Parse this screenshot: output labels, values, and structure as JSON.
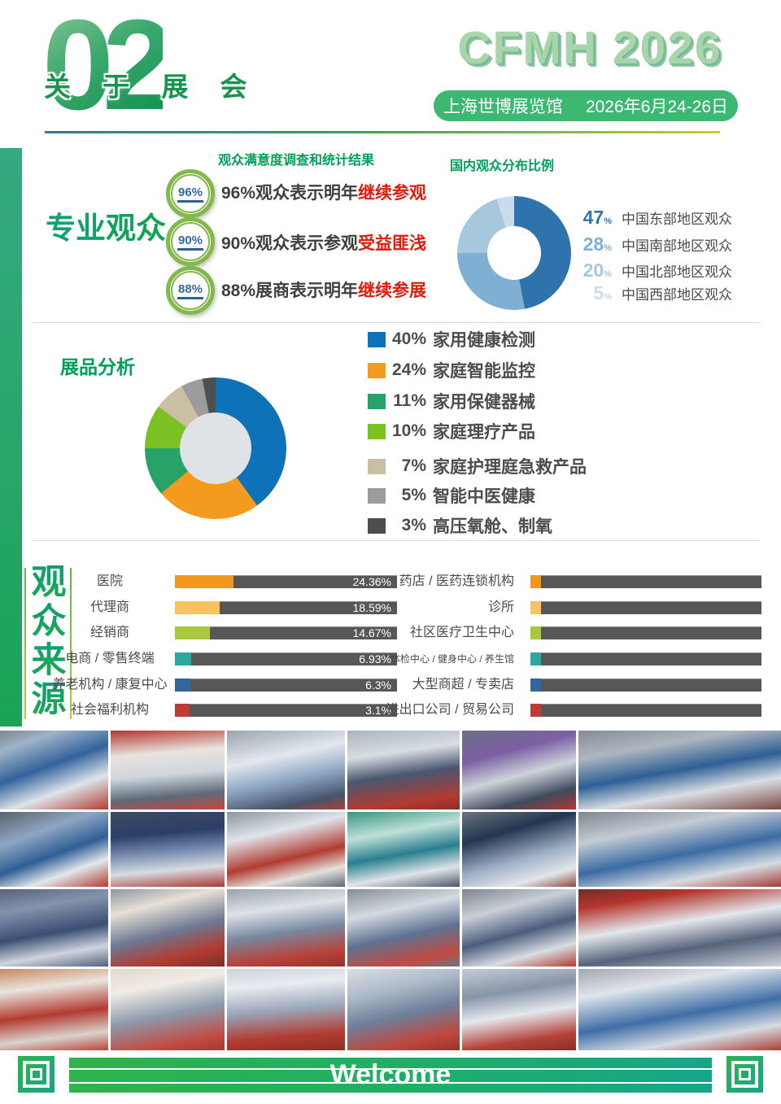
{
  "header": {
    "section_number": "02",
    "section_title": "关 于 展 会",
    "logo": "CFMH 2026",
    "venue": "上海世博展览馆",
    "dates": "2026年6月24-26日"
  },
  "satisfaction": {
    "title": "观众满意度调查和统计结果",
    "side_title": "专业观众",
    "items": [
      {
        "badge": "96%",
        "text": "96%观众表示明年",
        "highlight": "继续参观"
      },
      {
        "badge": "90%",
        "text": "90%观众表示参观",
        "highlight": "受益匪浅"
      },
      {
        "badge": "88%",
        "text": "88%展商表示明年",
        "highlight": "继续参展"
      }
    ]
  },
  "regions": {
    "title": "国内观众分布比例",
    "percent_sign": "%",
    "items": [
      {
        "value": "47",
        "label": "中国东部地区观众",
        "color": "#2f73ad"
      },
      {
        "value": "28",
        "label": "中国南部地区观众",
        "color": "#7fb0d3"
      },
      {
        "value": "20",
        "label": "中国北部地区观众",
        "color": "#a6c8dd"
      },
      {
        "value": "5",
        "label": "中国西部地区观众",
        "color": "#c9dcee"
      }
    ]
  },
  "products": {
    "title": "展品分析",
    "items": [
      {
        "pct": "40%",
        "label": "家用健康检测",
        "color": "#0e72b8"
      },
      {
        "pct": "24%",
        "label": "家庭智能监控",
        "color": "#f49a1f"
      },
      {
        "pct": "11%",
        "label": "家用保健器械",
        "color": "#28a368"
      },
      {
        "pct": "10%",
        "label": "家庭理疗产品",
        "color": "#7cc122"
      },
      {
        "pct": "7%",
        "label": "家庭护理庭急救产品",
        "color": "#cbbfa3"
      },
      {
        "pct": "5%",
        "label": "智能中医健康",
        "color": "#9c9c9c"
      },
      {
        "pct": "3%",
        "label": "高压氧舱、制氧",
        "color": "#4e4e4e"
      }
    ]
  },
  "sources": {
    "side_title": [
      "观",
      "众",
      "来",
      "源"
    ],
    "left": [
      {
        "label": "医院",
        "pct": "24.36%",
        "value": 24.36,
        "color": "#f3981d"
      },
      {
        "label": "代理商",
        "pct": "18.59%",
        "value": 18.59,
        "color": "#f7c35f"
      },
      {
        "label": "经销商",
        "pct": "14.67%",
        "value": 14.67,
        "color": "#a8c83d"
      },
      {
        "label": "电商 / 零售终端",
        "pct": "6.93%",
        "value": 6.93,
        "color": "#2ba8a0"
      },
      {
        "label": "养老机构 / 康复中心",
        "pct": "6.3%",
        "value": 6.3,
        "color": "#30679f"
      },
      {
        "label": "社会福利机构",
        "pct": "3.1%",
        "value": 3.1,
        "color": "#bf3b35"
      }
    ],
    "right": [
      {
        "label": "药店 / 医药连锁机构",
        "color": "#f3981d"
      },
      {
        "label": "诊所",
        "color": "#f7c35f"
      },
      {
        "label": "社区医疗卫生中心",
        "color": "#a8c83d"
      },
      {
        "label": "体检中心 / 健身中心 / 养生馆",
        "color": "#2ba8a0"
      },
      {
        "label": "大型商超 / 专卖店",
        "color": "#30679f"
      },
      {
        "label": "进出口公司 / 贸易公司",
        "color": "#bf3b35"
      }
    ]
  },
  "footer": {
    "welcome": "Welcome"
  },
  "theme": {
    "green": "#16a24f",
    "teal": "#15a68b",
    "highlight_red": "#dd1c0e",
    "dark_bar": "#575757",
    "badge_ring": "#83b84c",
    "badge_text": "#336a9e"
  },
  "photos": {
    "tiles": [
      {
        "bg": "linear-gradient(160deg,#7d858f 0%,#9fb3c8 18%,#33639c 45%,#dde4ea 70%,#b23b31 100%)"
      },
      {
        "bg": "linear-gradient(175deg,#b5342c 0%,#e8e3de 30%,#cfd6dd 55%,#5d6a78 80%,#c8463c 100%)"
      },
      {
        "bg": "linear-gradient(168deg,#9aa3ad 0%,#e3e8ee 35%,#8fa7c4 60%,#46536b 85%,#aa4238 100%)"
      },
      {
        "bg": "linear-gradient(172deg,#aab3bd 0%,#d8dde3 30%,#4a5670 55%,#b23b31 85%,#8e2e27 100%)"
      },
      {
        "bg": "linear-gradient(165deg,#6d6f86 0%,#7b5fa3 30%,#cdd3da 55%,#3f4a5e 80%,#b0392f 100%)"
      },
      {
        "bg": "linear-gradient(170deg,#848b94 0%,#aeb6bf 25%,#2e5f95 50%,#d9dee4 72%,#7c4a43 100%)"
      },
      {
        "bg": "linear-gradient(160deg,#5a6270 0%,#8ea6c2 30%,#2f5f96 55%,#e2e7ec 75%,#b23b31 100%)"
      },
      {
        "bg": "linear-gradient(175deg,#3d4a63 0%,#2b3f66 30%,#7e93b5 55%,#d7dce2 75%,#a83a31 100%)"
      },
      {
        "bg": "linear-gradient(167deg,#8d949d 0%,#dfe4ea 30%,#b23b31 60%,#e4e0dc 80%,#5c6878 100%)"
      },
      {
        "bg": "linear-gradient(170deg,#35977f 0%,#bfe0d8 30%,#2a7f8f 55%,#dfe4e9 78%,#4a5668 100%)"
      },
      {
        "bg": "linear-gradient(164deg,#6c7480 0%,#23364f 30%,#9fb0c6 60%,#e2e6eb 82%,#8a4a42 100%)"
      },
      {
        "bg": "linear-gradient(169deg,#7e8791 0%,#c3cbd4 28%,#3b6ba3 55%,#d6dce2 78%,#a23a32 100%)"
      },
      {
        "bg": "linear-gradient(170deg,#59627a 0%,#8494ad 25%,#3b4e74 55%,#cdd4dd 78%,#54607a 100%)"
      },
      {
        "bg": "linear-gradient(166deg,#8f969e 0%,#e6e0d6 25%,#6d7892 55%,#b23b31 80%,#7d2f28 100%)"
      },
      {
        "bg": "linear-gradient(172deg,#9aa2ab 0%,#dde2e8 28%,#7888a0 55%,#b8423a 82%,#93332b 100%)"
      },
      {
        "bg": "linear-gradient(168deg,#848d97 0%,#d4dae1 30%,#5f7292 58%,#c24a40 85%,#6b7688 100%)"
      },
      {
        "bg": "linear-gradient(165deg,#7c848e 0%,#c8cfd7 28%,#4c5d7d 55%,#d8dde3 78%,#b23b31 100%)"
      },
      {
        "bg": "linear-gradient(171deg,#6f2f2a 0%,#b5342c 18%,#e3e7ec 45%,#57637b 70%,#cfd5dc 100%)"
      },
      {
        "bg": "linear-gradient(173deg,#c9885f 0%,#e9e4de 25%,#b23b31 55%,#d8d2cb 80%,#b9453b 100%)"
      },
      {
        "bg": "linear-gradient(169deg,#e2d8cc 0%,#f0ece6 25%,#8d9aad 55%,#c24a40 85%,#a23a32 100%)"
      },
      {
        "bg": "linear-gradient(175deg,#cdd3da 0%,#e8ecf0 22%,#9aa7ba 50%,#b23b31 80%,#8e2e27 100%)"
      },
      {
        "bg": "linear-gradient(167deg,#d9dee4 0%,#aebaca 28%,#6e7f9a 55%,#c0473d 82%,#97342c 100%)"
      },
      {
        "bg": "linear-gradient(171deg,#c5ccd4 0%,#8795a9 30%,#e4e8ed 55%,#b5433a 82%,#852f28 100%)"
      },
      {
        "bg": "linear-gradient(170deg,#9fa7b0 0%,#e0e5ea 25%,#3f6ea6 55%,#d5dbe2 78%,#ab3e35 100%)"
      }
    ]
  },
  "chart_data": [
    {
      "type": "pie",
      "donut": true,
      "title": "国内观众分布比例",
      "categories": [
        "中国东部地区观众",
        "中国南部地区观众",
        "中国北部地区观众",
        "中国西部地区观众"
      ],
      "values": [
        47,
        28,
        20,
        5
      ],
      "colors": [
        "#2f73ad",
        "#7fb0d3",
        "#a6c8dd",
        "#c9dcee"
      ],
      "hole_color": "#ffffff",
      "start_angle_deg": 0,
      "legend_position": "right"
    },
    {
      "type": "pie",
      "donut": true,
      "title": "展品分析",
      "categories": [
        "家用健康检测",
        "家庭智能监控",
        "家用保健器械",
        "家庭理疗产品",
        "家庭护理庭急救产品",
        "智能中医健康",
        "高压氧舱、制氧"
      ],
      "values": [
        40,
        24,
        11,
        10,
        7,
        5,
        3
      ],
      "colors": [
        "#0e72b8",
        "#f49a1f",
        "#28a368",
        "#7cc122",
        "#cbbfa3",
        "#9c9c9c",
        "#4e4e4e"
      ],
      "hole_color": "#dfe2e6",
      "start_angle_deg": 0,
      "legend_position": "right"
    },
    {
      "type": "bar",
      "orientation": "horizontal",
      "title": "观众来源",
      "groups": [
        {
          "categories": [
            "医院",
            "代理商",
            "经销商",
            "电商 / 零售终端",
            "养老机构 / 康复中心",
            "社会福利机构"
          ],
          "values": [
            24.36,
            18.59,
            14.67,
            6.93,
            6.3,
            3.1
          ],
          "values_shown": true
        },
        {
          "categories": [
            "药店 / 医药连锁机构",
            "诊所",
            "社区医疗卫生中心",
            "体检中心 / 健身中心 / 养生馆",
            "大型商超 / 专卖店",
            "进出口公司 / 贸易公司"
          ],
          "values": [],
          "values_shown": false
        }
      ]
    }
  ]
}
